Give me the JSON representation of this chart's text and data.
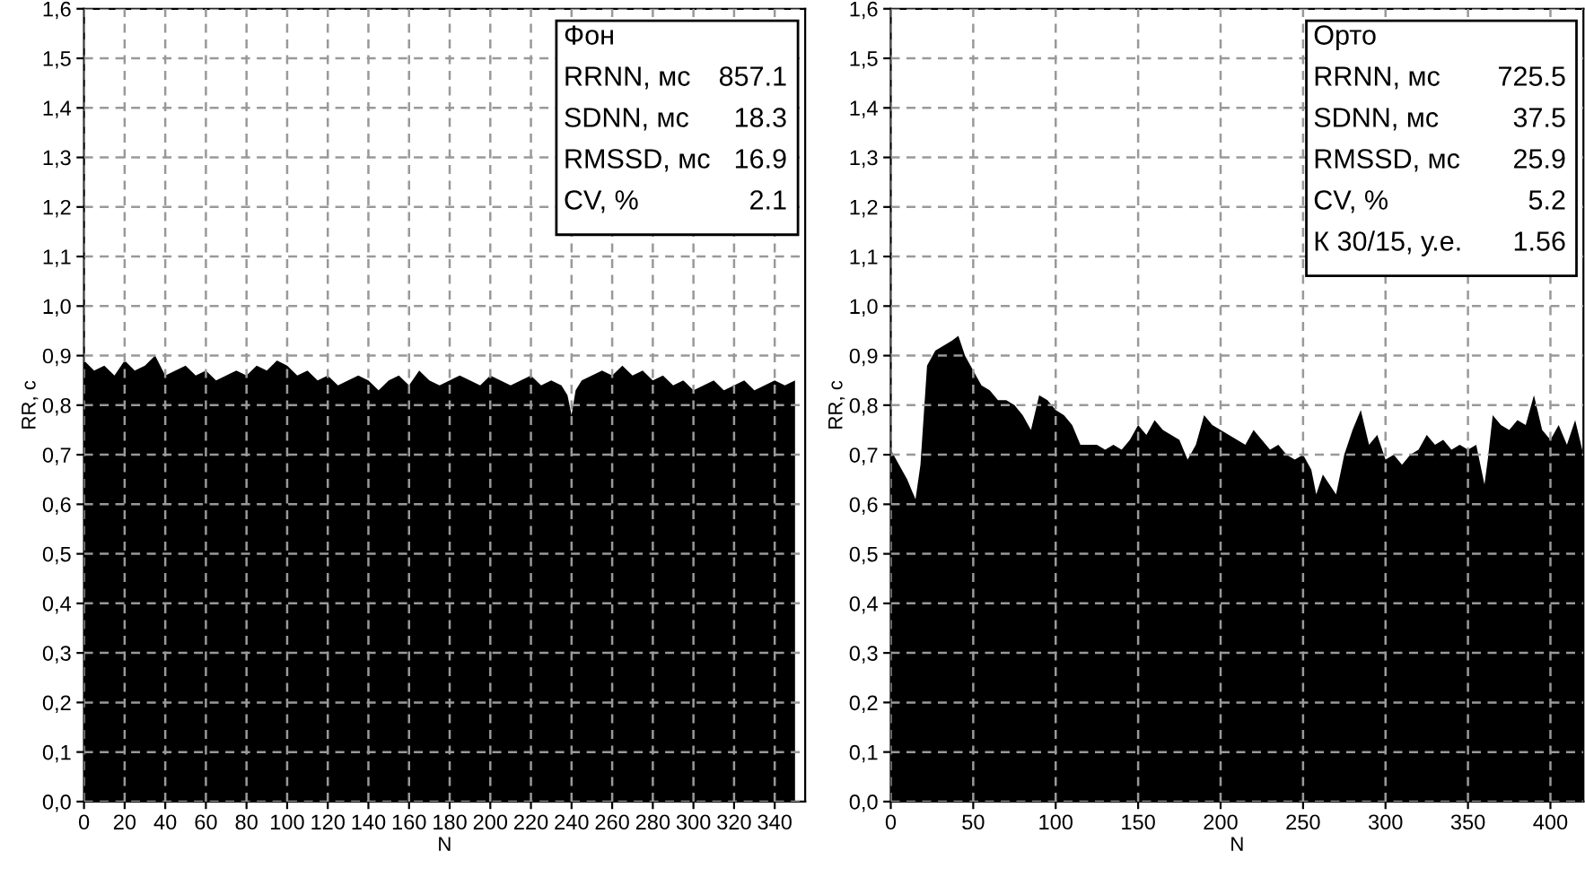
{
  "chart_data": [
    {
      "type": "area",
      "xlabel": "N",
      "ylabel": "RR, с",
      "grid": true,
      "line_style": "dashed",
      "x": [
        0,
        5,
        10,
        15,
        20,
        25,
        30,
        35,
        40,
        45,
        50,
        55,
        60,
        65,
        70,
        75,
        80,
        85,
        90,
        95,
        100,
        105,
        110,
        115,
        120,
        125,
        130,
        135,
        140,
        145,
        150,
        155,
        160,
        165,
        170,
        175,
        180,
        185,
        190,
        195,
        200,
        205,
        210,
        215,
        220,
        225,
        230,
        235,
        238,
        240,
        242,
        245,
        250,
        255,
        260,
        265,
        270,
        275,
        280,
        285,
        290,
        295,
        300,
        305,
        310,
        315,
        320,
        325,
        330,
        335,
        340,
        345,
        350
      ],
      "series": [
        {
          "color": "#000000",
          "values": [
            0.89,
            0.87,
            0.88,
            0.86,
            0.89,
            0.87,
            0.88,
            0.9,
            0.86,
            0.87,
            0.88,
            0.86,
            0.87,
            0.85,
            0.86,
            0.87,
            0.86,
            0.88,
            0.87,
            0.89,
            0.88,
            0.86,
            0.87,
            0.85,
            0.86,
            0.84,
            0.85,
            0.86,
            0.85,
            0.83,
            0.85,
            0.86,
            0.84,
            0.87,
            0.85,
            0.84,
            0.85,
            0.86,
            0.85,
            0.84,
            0.86,
            0.85,
            0.84,
            0.85,
            0.86,
            0.84,
            0.85,
            0.84,
            0.82,
            0.78,
            0.83,
            0.85,
            0.86,
            0.87,
            0.86,
            0.88,
            0.86,
            0.87,
            0.85,
            0.86,
            0.84,
            0.85,
            0.83,
            0.84,
            0.85,
            0.83,
            0.84,
            0.85,
            0.83,
            0.84,
            0.85,
            0.84,
            0.85
          ]
        }
      ],
      "xlim": [
        0,
        355
      ],
      "xticks": [
        0,
        20,
        40,
        60,
        80,
        100,
        120,
        140,
        160,
        180,
        200,
        220,
        240,
        260,
        280,
        300,
        320,
        340
      ],
      "ylim": [
        0,
        1.6
      ],
      "yticks": [
        {
          "value": 0,
          "label": "0,0"
        },
        {
          "value": 0.1,
          "label": "0,1"
        },
        {
          "value": 0.2,
          "label": "0,2"
        },
        {
          "value": 0.3,
          "label": "0,3"
        },
        {
          "value": 0.4,
          "label": "0,4"
        },
        {
          "value": 0.5,
          "label": "0,5"
        },
        {
          "value": 0.6,
          "label": "0,6"
        },
        {
          "value": 0.7,
          "label": "0,7"
        },
        {
          "value": 0.8,
          "label": "0,8"
        },
        {
          "value": 0.9,
          "label": "0,9"
        },
        {
          "value": 1.0,
          "label": "1,0"
        },
        {
          "value": 1.1,
          "label": "1,1"
        },
        {
          "value": 1.2,
          "label": "1,2"
        },
        {
          "value": 1.3,
          "label": "1,3"
        },
        {
          "value": 1.4,
          "label": "1,4"
        },
        {
          "value": 1.5,
          "label": "1,5"
        },
        {
          "value": 1.6,
          "label": "1,6"
        }
      ],
      "annotations": [
        "Фон",
        "RRNN, мс",
        "857.1",
        "SDNN, мс",
        "18.3",
        "RMSSD, мс",
        "16.9",
        "CV, %",
        "2.1"
      ]
    },
    {
      "type": "area",
      "xlabel": "N",
      "ylabel": "RR, с",
      "grid": true,
      "line_style": "dashed",
      "x": [
        0,
        5,
        10,
        15,
        18,
        22,
        27,
        32,
        37,
        41,
        45,
        50,
        55,
        60,
        65,
        70,
        75,
        80,
        85,
        90,
        95,
        100,
        105,
        110,
        115,
        120,
        125,
        130,
        135,
        140,
        145,
        150,
        155,
        160,
        165,
        170,
        175,
        180,
        185,
        190,
        195,
        200,
        205,
        210,
        215,
        220,
        225,
        230,
        235,
        240,
        245,
        250,
        255,
        258,
        262,
        266,
        270,
        275,
        280,
        285,
        290,
        295,
        300,
        305,
        310,
        315,
        320,
        325,
        330,
        335,
        340,
        345,
        350,
        355,
        360,
        362,
        365,
        370,
        375,
        380,
        385,
        390,
        395,
        400,
        405,
        410,
        415,
        420
      ],
      "series": [
        {
          "color": "#000000",
          "values": [
            0.71,
            0.68,
            0.65,
            0.61,
            0.68,
            0.88,
            0.91,
            0.92,
            0.93,
            0.94,
            0.9,
            0.87,
            0.84,
            0.83,
            0.81,
            0.81,
            0.8,
            0.78,
            0.75,
            0.82,
            0.81,
            0.79,
            0.78,
            0.76,
            0.72,
            0.72,
            0.72,
            0.71,
            0.72,
            0.71,
            0.73,
            0.76,
            0.74,
            0.77,
            0.75,
            0.74,
            0.73,
            0.69,
            0.72,
            0.78,
            0.76,
            0.75,
            0.74,
            0.73,
            0.72,
            0.75,
            0.73,
            0.71,
            0.72,
            0.7,
            0.69,
            0.7,
            0.67,
            0.62,
            0.66,
            0.64,
            0.62,
            0.7,
            0.75,
            0.79,
            0.72,
            0.74,
            0.69,
            0.7,
            0.68,
            0.7,
            0.71,
            0.74,
            0.72,
            0.73,
            0.71,
            0.72,
            0.71,
            0.72,
            0.64,
            0.69,
            0.78,
            0.76,
            0.75,
            0.77,
            0.76,
            0.82,
            0.75,
            0.73,
            0.76,
            0.72,
            0.77,
            0.7
          ]
        }
      ],
      "xlim": [
        0,
        420
      ],
      "xticks": [
        0,
        50,
        100,
        150,
        200,
        250,
        300,
        350,
        400
      ],
      "ylim": [
        0,
        1.6
      ],
      "yticks": [
        {
          "value": 0,
          "label": "0,0"
        },
        {
          "value": 0.1,
          "label": "0,1"
        },
        {
          "value": 0.2,
          "label": "0,2"
        },
        {
          "value": 0.3,
          "label": "0,3"
        },
        {
          "value": 0.4,
          "label": "0,4"
        },
        {
          "value": 0.5,
          "label": "0,5"
        },
        {
          "value": 0.6,
          "label": "0,6"
        },
        {
          "value": 0.7,
          "label": "0,7"
        },
        {
          "value": 0.8,
          "label": "0,8"
        },
        {
          "value": 0.9,
          "label": "0,9"
        },
        {
          "value": 1.0,
          "label": "1,0"
        },
        {
          "value": 1.1,
          "label": "1,1"
        },
        {
          "value": 1.2,
          "label": "1,2"
        },
        {
          "value": 1.3,
          "label": "1,3"
        },
        {
          "value": 1.4,
          "label": "1,4"
        },
        {
          "value": 1.5,
          "label": "1,5"
        },
        {
          "value": 1.6,
          "label": "1,6"
        }
      ],
      "annotations": [
        "Орто",
        "RRNN, мс",
        "725.5",
        "SDNN, мс",
        "37.5",
        "RMSSD, мс",
        "25.9",
        "CV, %",
        "5.2",
        "К 30/15, у.е.",
        "1.56"
      ]
    }
  ]
}
